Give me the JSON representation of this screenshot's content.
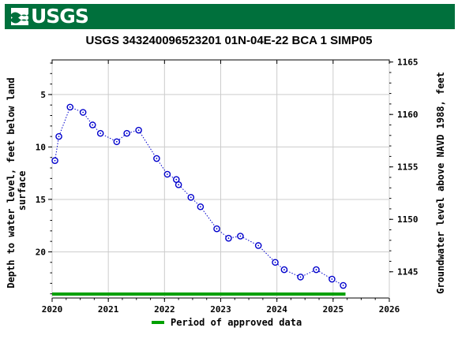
{
  "header": {
    "logo_text": "USGS",
    "logo_color": "#00703c"
  },
  "chart_data": {
    "type": "scatter",
    "title": "USGS 343240096523201 01N-04E-22 BCA 1 SIMP05",
    "xlabel": "",
    "ylabel_left": "Depth to water level, feet below land surface",
    "ylabel_right": "Groundwater level above NAVD 1988, feet",
    "xlim": [
      2020,
      2026
    ],
    "ylim_left": [
      24.4,
      1.7
    ],
    "ylim_right_ticks": [
      1145,
      1150,
      1155,
      1160,
      1165
    ],
    "left_ticks": [
      5,
      10,
      15,
      20
    ],
    "x_ticks": [
      "2020",
      "2021",
      "2022",
      "2023",
      "2024",
      "2025",
      "2026"
    ],
    "grid": true,
    "series": [
      {
        "marker_color": "#0000cc",
        "line_style": "dotted",
        "x": [
          2020.05,
          2020.12,
          2020.32,
          2020.55,
          2020.72,
          2020.86,
          2021.15,
          2021.33,
          2021.54,
          2021.86,
          2022.05,
          2022.21,
          2022.25,
          2022.47,
          2022.64,
          2022.93,
          2023.14,
          2023.35,
          2023.67,
          2023.97,
          2024.13,
          2024.42,
          2024.7,
          2024.98,
          2025.18
        ],
        "y": [
          11.3,
          9.0,
          6.2,
          6.7,
          7.9,
          8.7,
          9.5,
          8.7,
          8.4,
          11.1,
          12.6,
          13.1,
          13.6,
          14.8,
          15.7,
          17.8,
          18.7,
          18.5,
          19.4,
          21.0,
          21.7,
          22.4,
          21.7,
          22.6,
          23.2
        ]
      }
    ],
    "approved_period": {
      "label": "Period of approved data",
      "color": "#00a000",
      "start": 2020.0,
      "end": 2025.22
    }
  }
}
